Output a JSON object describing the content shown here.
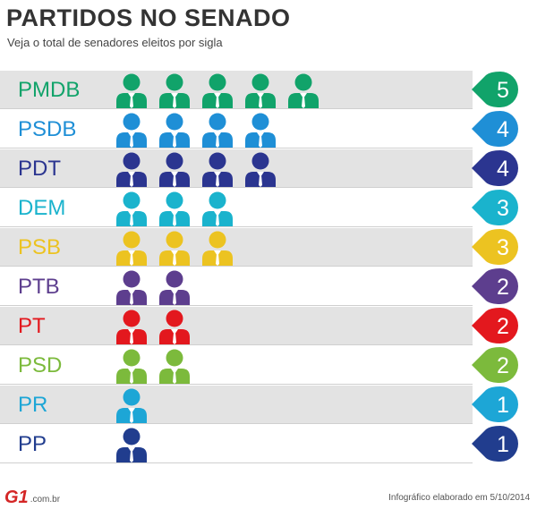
{
  "header": {
    "title": "PARTIDOS NO SENADO",
    "subtitle": "Veja o total de senadores eleitos por sigla"
  },
  "footer": {
    "logo": "G1",
    "domain": ".com.br",
    "credit": "Infográfico elaborado em 5/10/2014"
  },
  "chart_data": {
    "type": "bar",
    "title": "PARTIDOS NO SENADO",
    "subtitle": "Veja o total de senadores eleitos por sigla",
    "xlabel": "",
    "ylabel": "",
    "unit": "senadores eleitos",
    "categories": [
      "PMDB",
      "PSDB",
      "PDT",
      "DEM",
      "PSB",
      "PTB",
      "PT",
      "PSD",
      "PR",
      "PP"
    ],
    "values": [
      5,
      4,
      4,
      3,
      3,
      2,
      2,
      2,
      1,
      1
    ],
    "labels": [
      "5",
      "4",
      "4",
      "3",
      "3",
      "2",
      "2",
      "2",
      "1",
      "1"
    ],
    "colors": [
      "#11a36a",
      "#1f8fd6",
      "#2b3590",
      "#1ab3cd",
      "#ecc321",
      "#5d3e8e",
      "#e3181e",
      "#7cba3c",
      "#1da6d6",
      "#213d8e"
    ]
  }
}
